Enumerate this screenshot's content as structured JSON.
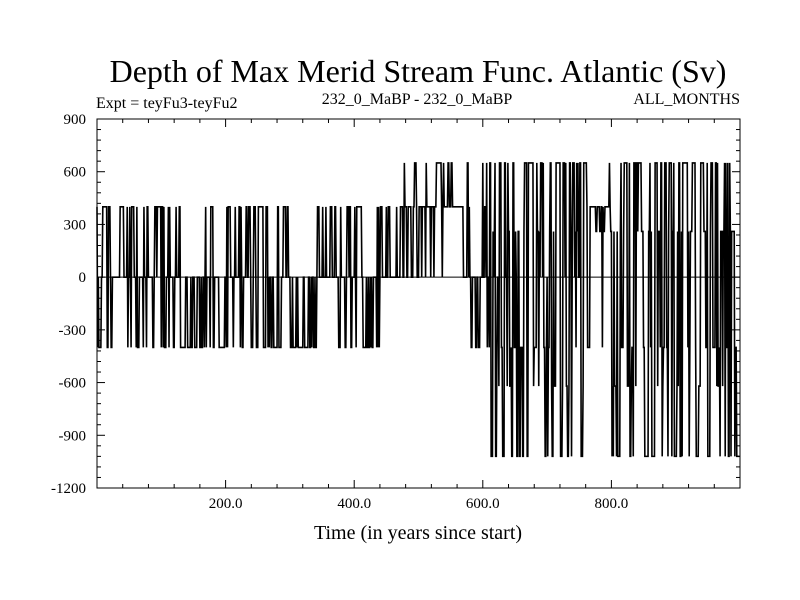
{
  "chart_data": {
    "type": "line",
    "title": "Depth of Max Merid Stream Func. Atlantic (Sv)",
    "subtitle_left": "Expt = teyFu3-teyFu2",
    "subtitle_center": "232_0_MaBP - 232_0_MaBP",
    "subtitle_right": "ALL_MONTHS",
    "xlabel": "Time (in years since start)",
    "ylabel": "",
    "xlim": [
      0,
      1000
    ],
    "ylim": [
      -1200,
      900
    ],
    "x_ticks": [
      200,
      400,
      600,
      800
    ],
    "x_tick_labels": [
      "200.0",
      "400.0",
      "600.0",
      "800.0"
    ],
    "y_ticks": [
      900,
      600,
      300,
      0,
      -300,
      -600,
      -900,
      -1200
    ],
    "y_tick_labels": [
      "900",
      "600",
      "300",
      "0",
      "-300",
      "-600",
      "-900",
      "-1200"
    ],
    "grid": false,
    "series": [
      {
        "color": "#000000",
        "segments": [
          {
            "x_range": [
              0,
              20
            ],
            "levels": [
              400,
              0,
              -400
            ],
            "weights": [
              0.55,
              0.3,
              0.15
            ]
          },
          {
            "x_range": [
              20,
              130
            ],
            "levels": [
              400,
              0,
              -400
            ],
            "weights": [
              0.3,
              0.4,
              0.3
            ]
          },
          {
            "x_range": [
              130,
              175
            ],
            "levels": [
              0,
              400,
              -400
            ],
            "weights": [
              0.5,
              0.1,
              0.4
            ]
          },
          {
            "x_range": [
              175,
              300
            ],
            "levels": [
              0,
              400,
              -400
            ],
            "weights": [
              0.35,
              0.3,
              0.35
            ]
          },
          {
            "x_range": [
              300,
              345
            ],
            "levels": [
              0,
              -400,
              400
            ],
            "weights": [
              0.45,
              0.5,
              0.05
            ]
          },
          {
            "x_range": [
              345,
              375
            ],
            "levels": [
              0,
              400
            ],
            "weights": [
              0.8,
              0.2
            ]
          },
          {
            "x_range": [
              375,
              440
            ],
            "levels": [
              -400,
              0,
              400
            ],
            "weights": [
              0.55,
              0.3,
              0.15
            ]
          },
          {
            "x_range": [
              440,
              470
            ],
            "levels": [
              0,
              400,
              -400
            ],
            "weights": [
              0.6,
              0.3,
              0.1
            ]
          },
          {
            "x_range": [
              470,
              540
            ],
            "levels": [
              400,
              0,
              650
            ],
            "weights": [
              0.6,
              0.3,
              0.1
            ]
          },
          {
            "x_range": [
              540,
              570
            ],
            "levels": [
              400,
              0,
              650
            ],
            "weights": [
              0.85,
              0.05,
              0.1
            ]
          },
          {
            "x_range": [
              570,
              610
            ],
            "levels": [
              0,
              -400,
              400,
              650
            ],
            "weights": [
              0.55,
              0.25,
              0.1,
              0.1
            ]
          },
          {
            "x_range": [
              610,
              760
            ],
            "levels": [
              650,
              260,
              0,
              -400,
              -620,
              -1020
            ],
            "weights": [
              0.3,
              0.15,
              0.1,
              0.15,
              0.1,
              0.2
            ]
          },
          {
            "x_range": [
              760,
              800
            ],
            "levels": [
              400,
              260,
              650,
              -400
            ],
            "weights": [
              0.45,
              0.3,
              0.15,
              0.1
            ]
          },
          {
            "x_range": [
              800,
              1000
            ],
            "levels": [
              650,
              260,
              -400,
              -620,
              -1020
            ],
            "weights": [
              0.35,
              0.2,
              0.15,
              0.1,
              0.2
            ]
          }
        ]
      }
    ]
  }
}
